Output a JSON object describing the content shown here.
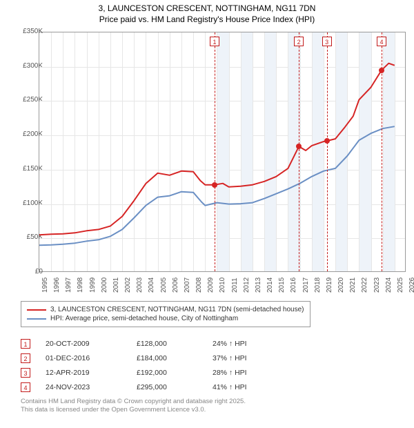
{
  "colors": {
    "series_red": "#d62424",
    "series_blue": "#6a8fc4",
    "grid": "#e6e6e6",
    "axis": "#999999",
    "marker_border": "#c21919",
    "text": "#333333",
    "shade": "#eef3f9",
    "footnote": "#878787",
    "background": "#ffffff"
  },
  "title_line1": "3, LAUNCESTON CRESCENT, NOTTINGHAM, NG11 7DN",
  "title_line2": "Price paid vs. HM Land Registry's House Price Index (HPI)",
  "chart": {
    "x": {
      "min": 1995,
      "max": 2026,
      "ticks": [
        1995,
        1996,
        1997,
        1998,
        1999,
        2000,
        2001,
        2002,
        2003,
        2004,
        2005,
        2006,
        2007,
        2008,
        2009,
        2010,
        2011,
        2012,
        2013,
        2014,
        2015,
        2016,
        2017,
        2018,
        2019,
        2020,
        2021,
        2022,
        2023,
        2024,
        2025,
        2026
      ]
    },
    "y": {
      "min": 0,
      "max": 350000,
      "tick_step": 50000,
      "labels": [
        "£0",
        "£50K",
        "£100K",
        "£150K",
        "£200K",
        "£250K",
        "£300K",
        "£350K"
      ]
    },
    "line_width": 2.0,
    "marker_radius": 4,
    "shade_alt_start": 2010
  },
  "legend": {
    "a": "3, LAUNCESTON CRESCENT, NOTTINGHAM, NG11 7DN (semi-detached house)",
    "b": "HPI: Average price, semi-detached house, City of Nottingham"
  },
  "series_red": [
    [
      1995,
      55000
    ],
    [
      1996,
      56000
    ],
    [
      1997,
      56500
    ],
    [
      1998,
      58000
    ],
    [
      1999,
      61000
    ],
    [
      2000,
      63000
    ],
    [
      2001,
      68000
    ],
    [
      2002,
      82000
    ],
    [
      2003,
      105000
    ],
    [
      2004,
      130000
    ],
    [
      2005,
      145000
    ],
    [
      2006,
      142000
    ],
    [
      2007,
      148000
    ],
    [
      2008,
      147000
    ],
    [
      2008.6,
      134000
    ],
    [
      2009,
      128000
    ],
    [
      2009.8,
      128000
    ],
    [
      2010.5,
      130000
    ],
    [
      2011,
      125000
    ],
    [
      2012,
      126000
    ],
    [
      2013,
      128000
    ],
    [
      2014,
      133000
    ],
    [
      2015,
      140000
    ],
    [
      2016,
      152000
    ],
    [
      2016.92,
      184000
    ],
    [
      2017.5,
      178000
    ],
    [
      2018,
      185000
    ],
    [
      2019,
      191000
    ],
    [
      2019.28,
      192000
    ],
    [
      2020,
      195000
    ],
    [
      2020.8,
      212000
    ],
    [
      2021.5,
      228000
    ],
    [
      2022,
      252000
    ],
    [
      2023,
      270000
    ],
    [
      2023.9,
      295000
    ],
    [
      2024.5,
      305000
    ],
    [
      2025,
      302000
    ]
  ],
  "series_blue": [
    [
      1995,
      40000
    ],
    [
      1996,
      40500
    ],
    [
      1997,
      41500
    ],
    [
      1998,
      43000
    ],
    [
      1999,
      46000
    ],
    [
      2000,
      48000
    ],
    [
      2001,
      53000
    ],
    [
      2002,
      63000
    ],
    [
      2003,
      80000
    ],
    [
      2004,
      98000
    ],
    [
      2005,
      110000
    ],
    [
      2006,
      112000
    ],
    [
      2007,
      118000
    ],
    [
      2008,
      117000
    ],
    [
      2008.7,
      103000
    ],
    [
      2009,
      98000
    ],
    [
      2010,
      102000
    ],
    [
      2011,
      100000
    ],
    [
      2012,
      100500
    ],
    [
      2013,
      102000
    ],
    [
      2014,
      108000
    ],
    [
      2015,
      115000
    ],
    [
      2016,
      122000
    ],
    [
      2017,
      130000
    ],
    [
      2018,
      140000
    ],
    [
      2019,
      148000
    ],
    [
      2020,
      152000
    ],
    [
      2021,
      170000
    ],
    [
      2022,
      193000
    ],
    [
      2023,
      203000
    ],
    [
      2024,
      210000
    ],
    [
      2025,
      213000
    ]
  ],
  "events": [
    {
      "n": "1",
      "year": 2009.8,
      "date": "20-OCT-2009",
      "price": "£128,000",
      "delta": "24% ↑ HPI"
    },
    {
      "n": "2",
      "year": 2016.92,
      "date": "01-DEC-2016",
      "price": "£184,000",
      "delta": "37% ↑ HPI"
    },
    {
      "n": "3",
      "year": 2019.28,
      "date": "12-APR-2019",
      "price": "£192,000",
      "delta": "28% ↑ HPI"
    },
    {
      "n": "4",
      "year": 2023.9,
      "date": "24-NOV-2023",
      "price": "£295,000",
      "delta": "41% ↑ HPI"
    }
  ],
  "event_dot_values": [
    128000,
    184000,
    192000,
    295000
  ],
  "footnote_line1": "Contains HM Land Registry data © Crown copyright and database right 2025.",
  "footnote_line2": "This data is licensed under the Open Government Licence v3.0."
}
